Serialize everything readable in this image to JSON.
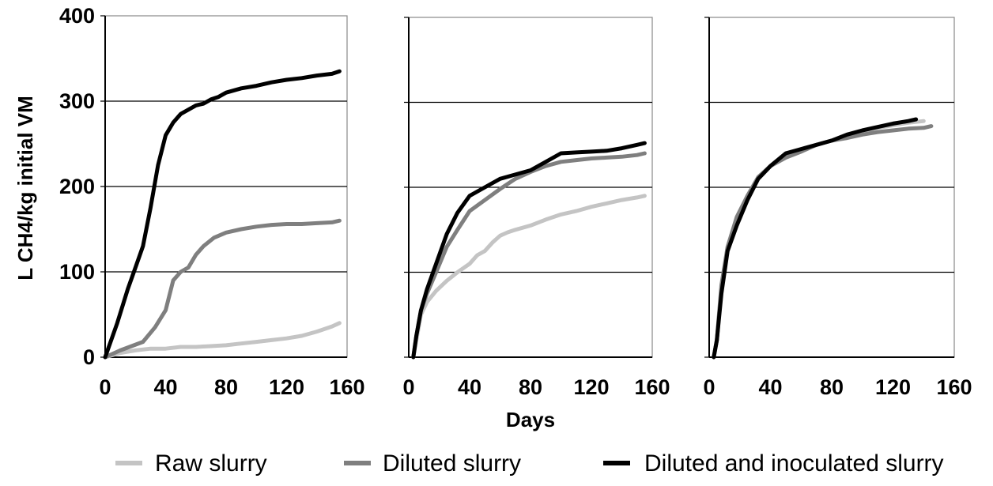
{
  "chart_data": {
    "type": "line",
    "ylabel": "L CH4/kg initial VM",
    "xlabel": "Days",
    "ylim": [
      0,
      400
    ],
    "yticks": [
      0,
      100,
      200,
      300,
      400
    ],
    "grid": "horizontal",
    "legend_position": "bottom",
    "legend": [
      {
        "name": "Raw slurry",
        "color": "#c4c4c4"
      },
      {
        "name": "Diluted slurry",
        "color": "#7f7f7f"
      },
      {
        "name": "Diluted and inoculated slurry",
        "color": "#000000"
      }
    ],
    "panels": [
      {
        "xlim": [
          0,
          160
        ],
        "xticks": [
          0,
          40,
          80,
          120,
          160
        ],
        "series": [
          {
            "name": "Raw slurry",
            "x": [
              0,
              10,
              20,
              30,
              40,
              50,
              60,
              70,
              80,
              90,
              100,
              110,
              120,
              130,
              140,
              150,
              155
            ],
            "y": [
              0,
              5,
              8,
              10,
              10,
              12,
              12,
              13,
              14,
              16,
              18,
              20,
              22,
              25,
              30,
              36,
              40
            ]
          },
          {
            "name": "Diluted slurry",
            "x": [
              0,
              10,
              25,
              33,
              40,
              45,
              50,
              55,
              60,
              65,
              72,
              80,
              90,
              100,
              110,
              120,
              130,
              140,
              150,
              155
            ],
            "y": [
              0,
              8,
              18,
              35,
              55,
              90,
              100,
              105,
              120,
              130,
              140,
              146,
              150,
              153,
              155,
              156,
              156,
              157,
              158,
              160
            ]
          },
          {
            "name": "Diluted and inoculated slurry",
            "x": [
              0,
              8,
              15,
              20,
              25,
              30,
              35,
              40,
              45,
              50,
              55,
              60,
              65,
              70,
              75,
              80,
              90,
              100,
              110,
              120,
              130,
              140,
              150,
              155
            ],
            "y": [
              0,
              40,
              80,
              105,
              130,
              175,
              225,
              260,
              275,
              285,
              290,
              295,
              297,
              302,
              305,
              310,
              315,
              318,
              322,
              325,
              327,
              330,
              332,
              335
            ]
          }
        ]
      },
      {
        "xlim": [
          0,
          160
        ],
        "xticks": [
          0,
          40,
          80,
          120,
          160
        ],
        "series": [
          {
            "name": "Raw slurry",
            "x": [
              3,
              5,
              8,
              12,
              18,
              25,
              32,
              40,
              45,
              50,
              55,
              60,
              65,
              70,
              80,
              90,
              100,
              110,
              120,
              130,
              140,
              150,
              155
            ],
            "y": [
              0,
              20,
              50,
              65,
              78,
              90,
              100,
              110,
              120,
              125,
              135,
              143,
              147,
              150,
              155,
              162,
              168,
              172,
              177,
              181,
              185,
              188,
              190
            ]
          },
          {
            "name": "Diluted slurry",
            "x": [
              3,
              5,
              8,
              12,
              18,
              25,
              32,
              40,
              50,
              60,
              70,
              80,
              90,
              100,
              110,
              120,
              130,
              140,
              150,
              155
            ],
            "y": [
              0,
              25,
              55,
              75,
              100,
              130,
              150,
              172,
              185,
              198,
              210,
              218,
              225,
              230,
              232,
              234,
              235,
              236,
              238,
              240
            ]
          },
          {
            "name": "Diluted and inoculated slurry",
            "x": [
              3,
              5,
              8,
              12,
              18,
              25,
              32,
              40,
              50,
              60,
              70,
              80,
              90,
              100,
              110,
              120,
              130,
              140,
              150,
              155
            ],
            "y": [
              0,
              25,
              55,
              80,
              110,
              145,
              170,
              190,
              200,
              210,
              215,
              220,
              230,
              240,
              241,
              242,
              243,
              246,
              250,
              252
            ]
          }
        ]
      },
      {
        "xlim": [
          0,
          160
        ],
        "xticks": [
          0,
          40,
          80,
          120,
          160
        ],
        "series": [
          {
            "name": "Raw slurry",
            "x": [
              3,
              5,
              8,
              12,
              18,
              25,
              32,
              40,
              50,
              60,
              70,
              80,
              90,
              100,
              110,
              120,
              130,
              140
            ],
            "y": [
              0,
              20,
              80,
              130,
              160,
              190,
              210,
              225,
              235,
              245,
              250,
              255,
              262,
              266,
              270,
              273,
              276,
              278
            ]
          },
          {
            "name": "Diluted slurry",
            "x": [
              3,
              5,
              8,
              12,
              18,
              25,
              32,
              40,
              50,
              60,
              70,
              80,
              90,
              100,
              110,
              120,
              130,
              140,
              145
            ],
            "y": [
              0,
              20,
              85,
              130,
              165,
              190,
              212,
              225,
              235,
              242,
              250,
              255,
              258,
              262,
              265,
              267,
              269,
              270,
              272
            ]
          },
          {
            "name": "Diluted and inoculated slurry",
            "x": [
              3,
              5,
              8,
              12,
              18,
              25,
              32,
              40,
              50,
              60,
              70,
              80,
              90,
              100,
              110,
              120,
              130,
              135
            ],
            "y": [
              0,
              20,
              75,
              125,
              155,
              185,
              210,
              225,
              240,
              245,
              250,
              255,
              262,
              267,
              271,
              275,
              278,
              280
            ]
          }
        ]
      }
    ]
  }
}
